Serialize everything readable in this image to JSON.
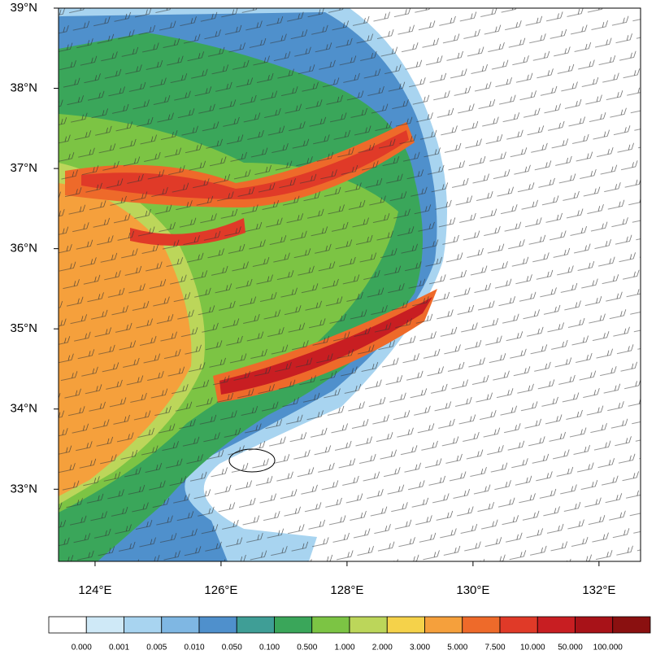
{
  "map": {
    "xlim": [
      123.42,
      132.66
    ],
    "ylim": [
      32.1,
      39
    ],
    "xticks": [
      {
        "value": 124,
        "label": "124°E"
      },
      {
        "value": 126,
        "label": "126°E"
      },
      {
        "value": 128,
        "label": "128°E"
      },
      {
        "value": 130,
        "label": "130°E"
      },
      {
        "value": 132,
        "label": "132°E"
      }
    ],
    "yticks": [
      {
        "value": 39,
        "label": "39°N"
      },
      {
        "value": 38,
        "label": "38°N"
      },
      {
        "value": 37,
        "label": "37°N"
      },
      {
        "value": 36,
        "label": "36°N"
      },
      {
        "value": 35,
        "label": "35°N"
      },
      {
        "value": 34,
        "label": "34°N"
      },
      {
        "value": 33,
        "label": "33°N"
      }
    ]
  },
  "colorbar": {
    "labels": [
      "0.000",
      "0.001",
      "0.005",
      "0.010",
      "0.050",
      "0.100",
      "0.500",
      "1.000",
      "2.000",
      "3.000",
      "5.000",
      "7.500",
      "10.000",
      "50.000",
      "100.000"
    ],
    "colors": [
      "#ffffff",
      "#cfe9f7",
      "#a8d4f0",
      "#7fb7e3",
      "#4f90cc",
      "#3f9e96",
      "#3aa65a",
      "#7cc444",
      "#bcd65a",
      "#f5d24a",
      "#f5a03c",
      "#ee6a2a",
      "#e03a28",
      "#c81e22",
      "#a81218",
      "#8a1010"
    ]
  }
}
